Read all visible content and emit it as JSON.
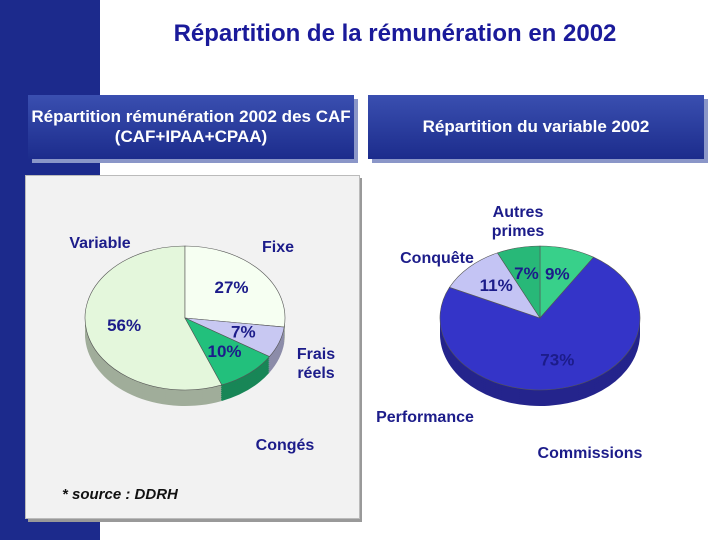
{
  "title": "Répartition de la rémunération en 2002",
  "source": "* source : DDRH",
  "chart_data": [
    {
      "type": "pie",
      "title": "Répartition rémunération 2002 des CAF (CAF+IPAA+CPAA)",
      "categories": [
        "Variable",
        "Fixe",
        "Frais réels",
        "Congés"
      ],
      "values": [
        56,
        27,
        7,
        10
      ],
      "value_labels": [
        "56%",
        "27%",
        "7%",
        "10%"
      ],
      "colors": [
        "#e4f7dc",
        "#f6fff2",
        "#c8c8f2",
        "#22c07c"
      ]
    },
    {
      "type": "pie",
      "title": "Répartition du variable 2002",
      "categories": [
        "Autres primes",
        "Commissions",
        "Performance",
        "Conquête"
      ],
      "values": [
        9,
        73,
        11,
        7
      ],
      "value_labels": [
        "9%",
        "73%",
        "11%",
        "7%"
      ],
      "colors": [
        "#38d08a",
        "#3434c8",
        "#c4c4f4",
        "#28b878"
      ]
    }
  ]
}
